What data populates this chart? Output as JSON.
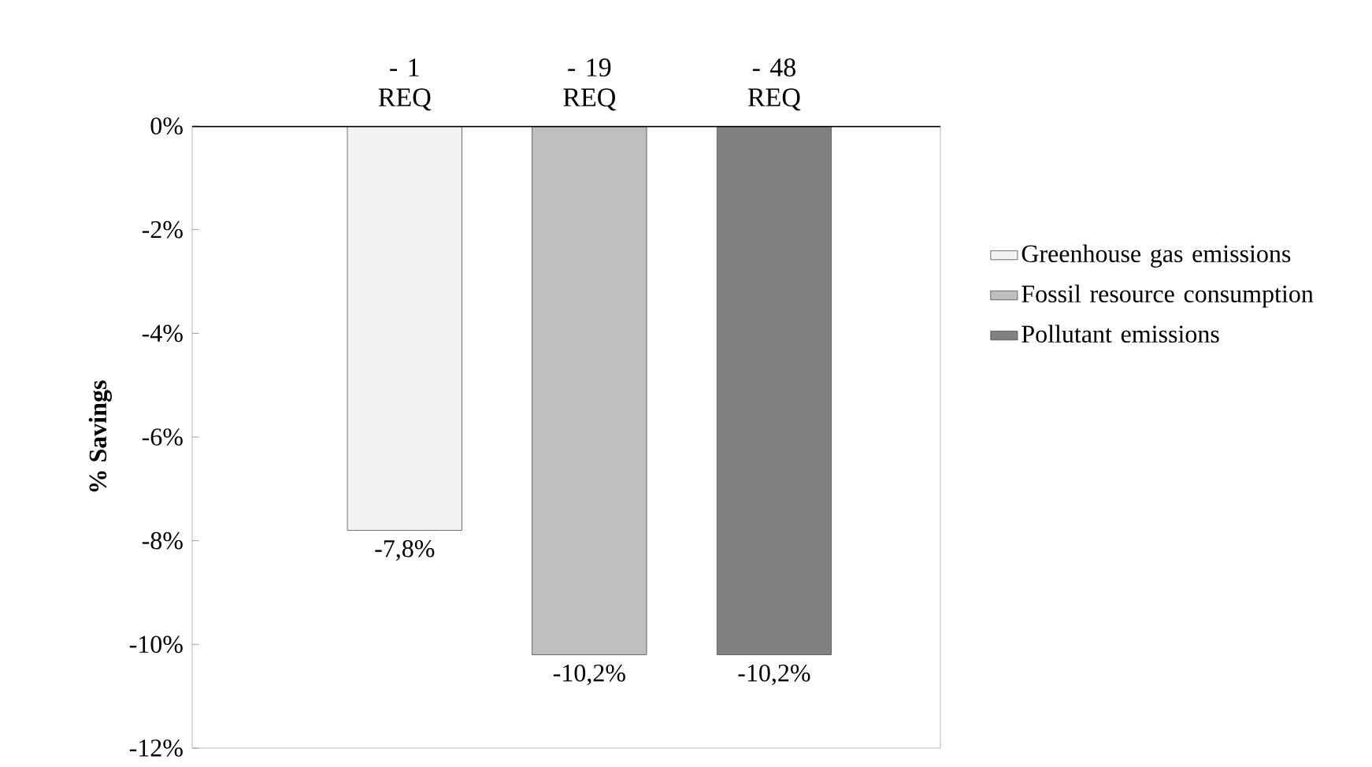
{
  "chart_data": {
    "type": "bar",
    "ylabel": "% Savings",
    "categories": [
      "- 1 REQ",
      "- 19 REQ",
      "- 48 REQ"
    ],
    "series": [
      {
        "name": "Greenhouse gas emissions",
        "color": "#f2f2f2",
        "values": [
          -7.8,
          null,
          null
        ],
        "value_labels": [
          "-7,8%",
          null,
          null
        ]
      },
      {
        "name": "Fossil resource consumption",
        "color": "#bfbfbf",
        "values": [
          null,
          -10.2,
          null
        ],
        "value_labels": [
          null,
          "-10,2%",
          null
        ]
      },
      {
        "name": "Pollutant emissions",
        "color": "#808080",
        "values": [
          null,
          null,
          -10.2
        ],
        "value_labels": [
          null,
          null,
          "-10,2%"
        ]
      }
    ],
    "ylim": [
      -12,
      0
    ],
    "yticks": [
      {
        "value": 0,
        "label": "0%"
      },
      {
        "value": -2,
        "label": "-2%"
      },
      {
        "value": -4,
        "label": "-4%"
      },
      {
        "value": -6,
        "label": "-6%"
      },
      {
        "value": -8,
        "label": "-8%"
      },
      {
        "value": -10,
        "label": "-10%"
      },
      {
        "value": -12,
        "label": "-12%"
      }
    ],
    "legend": "right"
  }
}
